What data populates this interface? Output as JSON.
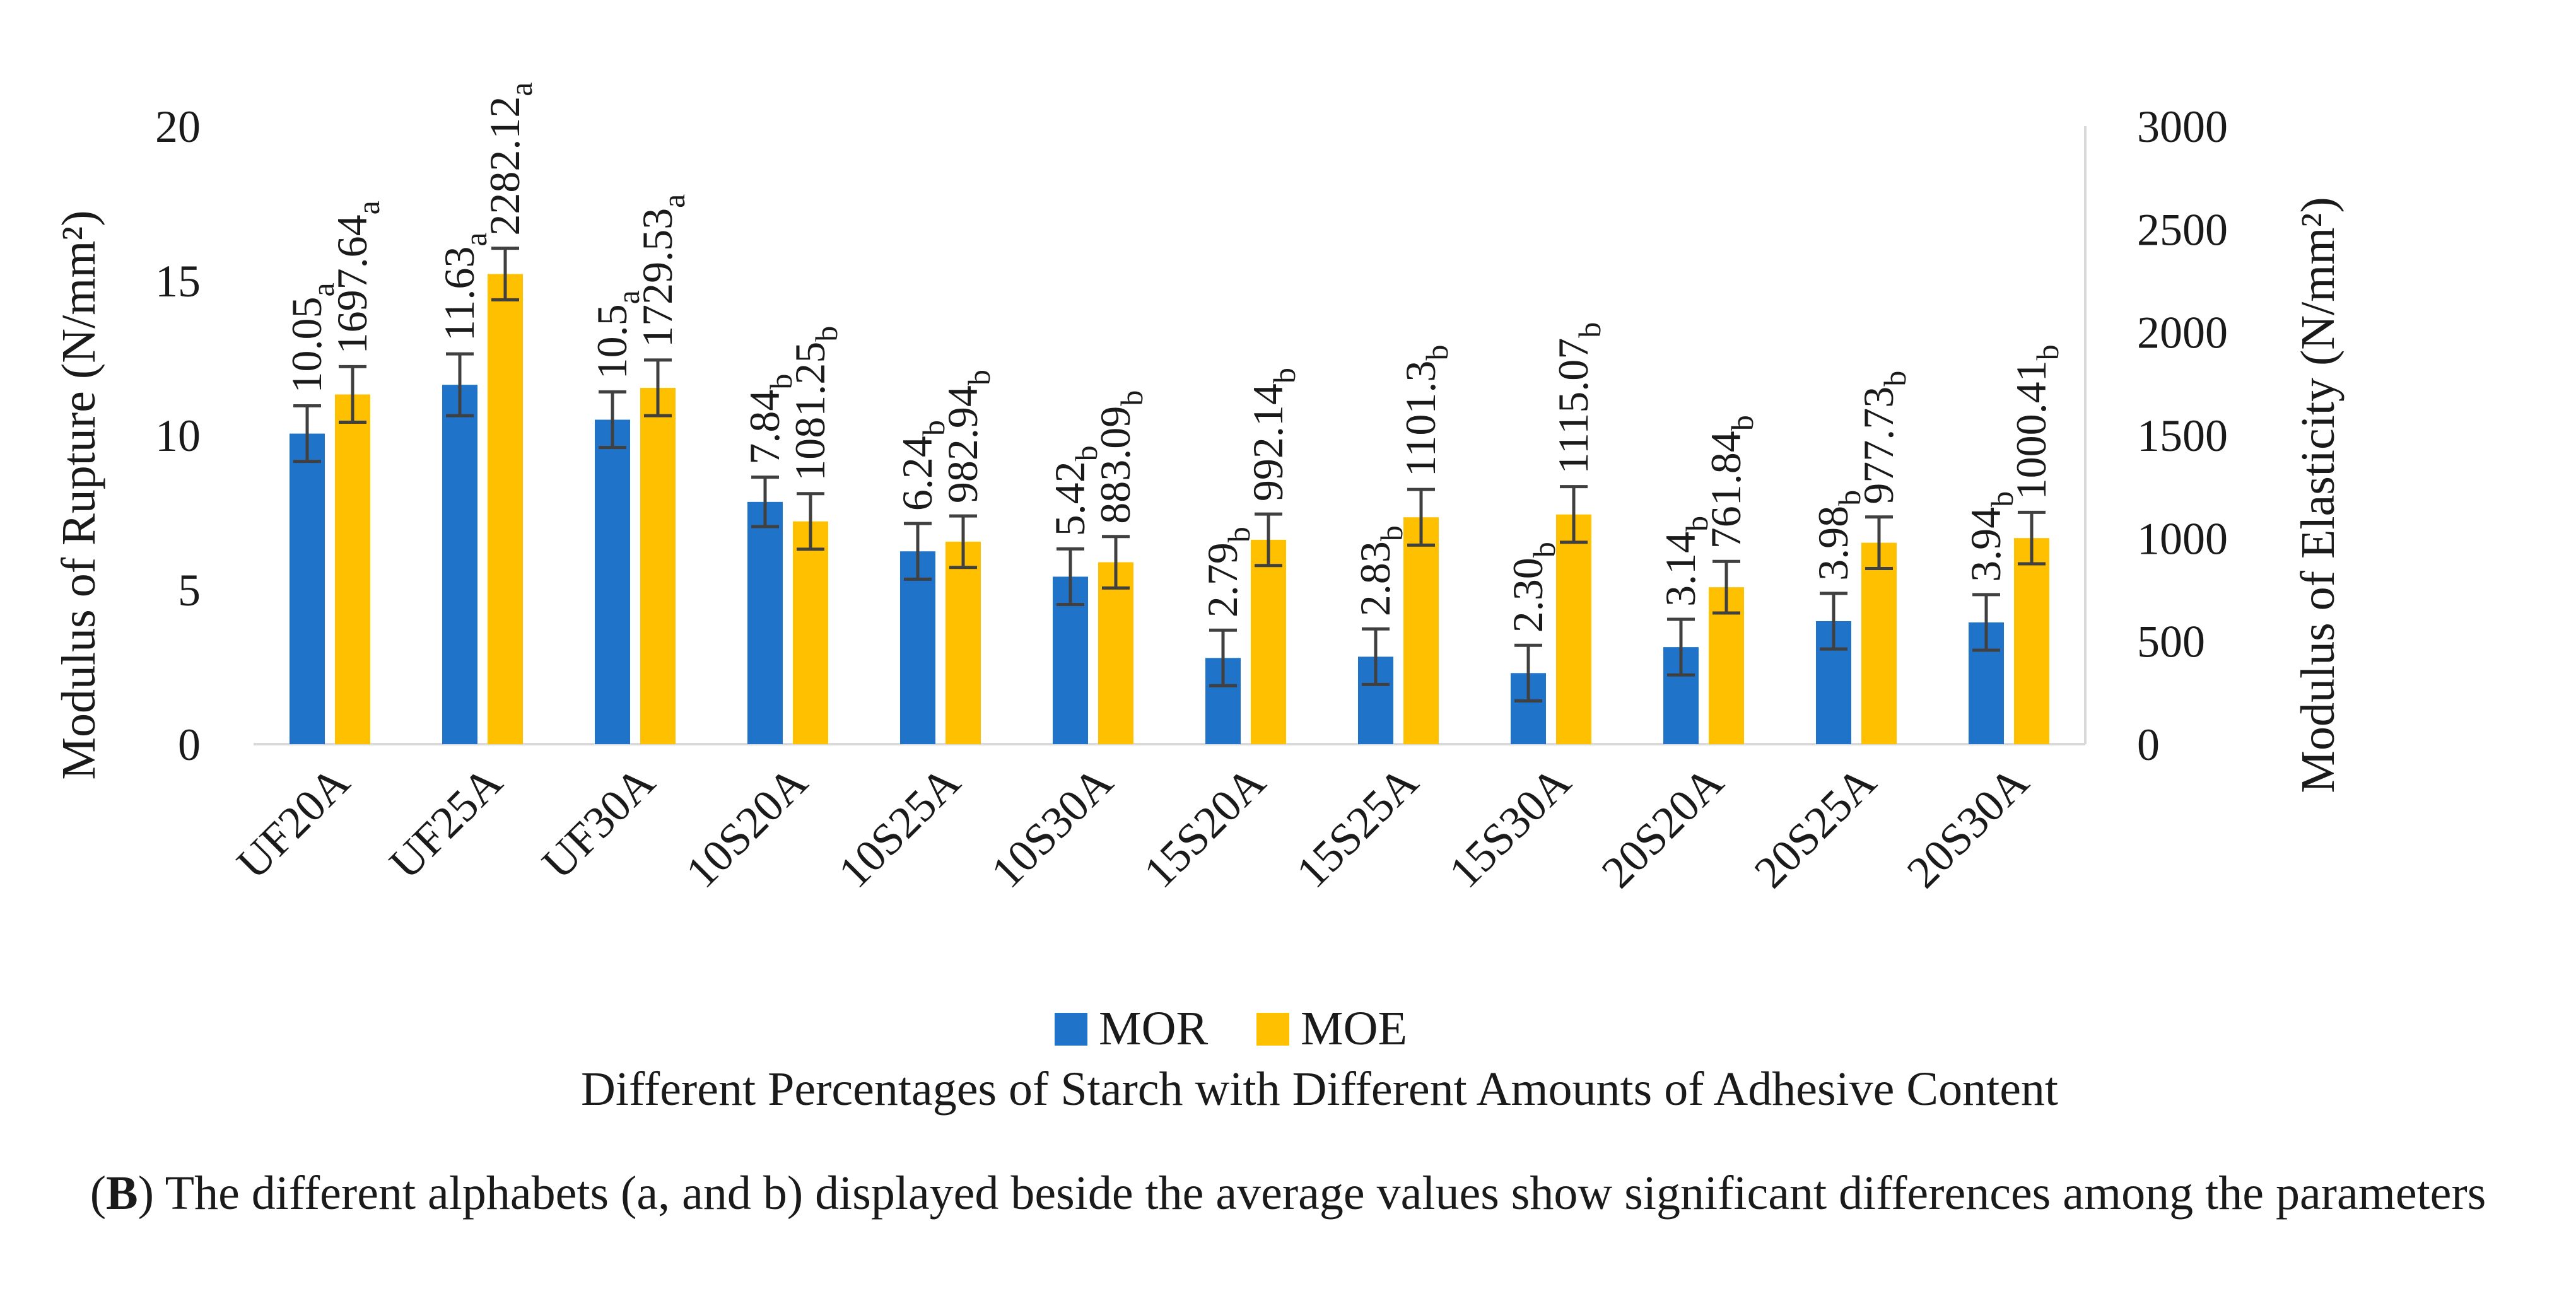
{
  "chart_data": {
    "type": "bar",
    "categories": [
      "UF20A",
      "UF25A",
      "UF30A",
      "10S20A",
      "10S25A",
      "10S30A",
      "15S20A",
      "15S25A",
      "15S30A",
      "20S20A",
      "20S25A",
      "20S30A"
    ],
    "series": [
      {
        "name": "MOR",
        "axis": "left",
        "color": "#1f73c9",
        "values": [
          10.05,
          11.63,
          10.5,
          7.84,
          6.24,
          5.42,
          2.79,
          2.83,
          2.3,
          3.14,
          3.98,
          3.94
        ],
        "labels": [
          "10.05",
          "11.63",
          "10.5",
          "7.84",
          "6.24",
          "5.42",
          "2.79",
          "2.83",
          "2.30",
          "3.14",
          "3.98",
          "3.94"
        ],
        "letters": [
          "a",
          "a",
          "a",
          "b",
          "b",
          "b",
          "b",
          "b",
          "b",
          "b",
          "b",
          "b"
        ],
        "error": [
          0.9,
          1.0,
          0.9,
          0.8,
          0.9,
          0.9,
          0.9,
          0.9,
          0.9,
          0.9,
          0.9,
          0.9
        ]
      },
      {
        "name": "MOE",
        "axis": "right",
        "color": "#ffc000",
        "values": [
          1697.64,
          2282.12,
          1729.53,
          1081.25,
          982.94,
          883.09,
          992.14,
          1101.3,
          1115.07,
          761.84,
          977.73,
          1000.41
        ],
        "labels": [
          "1697.64",
          "2282.12",
          "1729.53",
          "1081.25",
          "982.94",
          "883.09",
          "992.14",
          "1101.3",
          "1115.07",
          "761.84",
          "977.73",
          "1000.41"
        ],
        "letters": [
          "a",
          "a",
          "a",
          "b",
          "b",
          "b",
          "b",
          "b",
          "b",
          "b",
          "b",
          "b"
        ],
        "error": [
          135,
          125,
          135,
          135,
          125,
          125,
          125,
          135,
          135,
          125,
          125,
          125
        ]
      }
    ],
    "y_left": {
      "label": "Modulus of Rupture (N/mm²)",
      "lim": [
        0,
        20
      ],
      "ticks": [
        0,
        5,
        10,
        15,
        20
      ]
    },
    "y_right": {
      "label": "Modulus of Elasticity (N/mm²)",
      "lim": [
        0,
        3000
      ],
      "ticks": [
        0,
        500,
        1000,
        1500,
        2000,
        2500,
        3000
      ]
    },
    "xlabel": "Different Percentages of Starch with Different Amounts of Adhesive Content",
    "legend_position": "bottom",
    "grid": false
  },
  "caption": {
    "label": "B",
    "text": "The different alphabets (a, and b) displayed beside the average values show significant differences among the parameters"
  }
}
